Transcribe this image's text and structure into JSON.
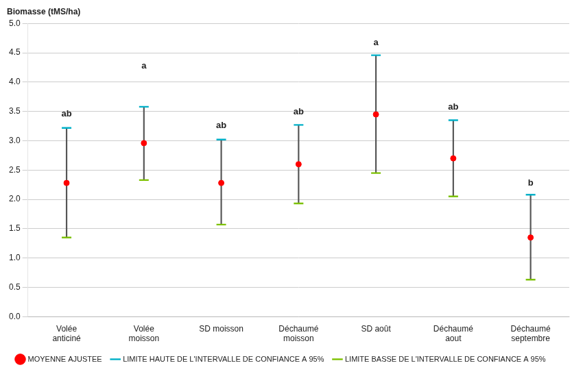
{
  "chart_data": {
    "type": "range",
    "y_label": "Biomasse (tMS/ha)",
    "categories": [
      "Volée\nanticiné",
      "Volée\nmoisson",
      "SD moisson",
      "Déchaumé\nmoisson",
      "SD août",
      "Déchaumé\naout",
      "Déchaumé\nseptembre"
    ],
    "color": "#555555",
    "series": [
      {
        "name": "LIMITE HAUTE DE L'INTERVALLE DE CONFIANCE A 95%",
        "color": "#00b0c8",
        "marker": "line",
        "values": [
          3.22,
          3.58,
          3.02,
          3.27,
          4.46,
          3.35,
          2.08
        ]
      },
      {
        "name": "MOYENNE AJUSTEE",
        "color": "#ff0000",
        "marker": "circle",
        "values": [
          2.28,
          2.96,
          2.28,
          2.6,
          3.45,
          2.7,
          1.35
        ]
      },
      {
        "name": "LIMITE BASSE DE L'INTERVALLE DE CONFIANCE A 95%",
        "color": "#7dc100",
        "marker": "line",
        "values": [
          1.35,
          2.33,
          1.57,
          1.93,
          2.45,
          2.05,
          0.63
        ]
      }
    ],
    "annotations": [
      {
        "text": "ab",
        "x": "Volée\nanticiné",
        "y": 3.38
      },
      {
        "text": "a",
        "x": "Volée\nmoisson",
        "y": 4.2
      },
      {
        "text": "ab",
        "x": "SD moisson",
        "y": 3.18
      },
      {
        "text": "ab",
        "x": "Déchaumé\nmoisson",
        "y": 3.42
      },
      {
        "text": "a",
        "x": "SD août",
        "y": 4.6
      },
      {
        "text": "ab",
        "x": "Déchaumé\naout",
        "y": 3.5
      },
      {
        "text": "b",
        "x": "Déchaumé\nseptembre",
        "y": 2.2
      }
    ],
    "ylim": [
      0.0,
      5.0
    ],
    "yticks": [
      {
        "value": 0,
        "label": "0.0"
      },
      0.5,
      {
        "value": 1,
        "label": "1.0"
      },
      1.5,
      {
        "value": 2,
        "label": "2.0"
      },
      2.5,
      {
        "value": 3,
        "label": "3.0"
      },
      3.5,
      {
        "value": 4,
        "label": "4.0"
      },
      4.5,
      {
        "value": 5,
        "label": "5.0"
      }
    ],
    "grid": true,
    "legend": "lower left"
  }
}
